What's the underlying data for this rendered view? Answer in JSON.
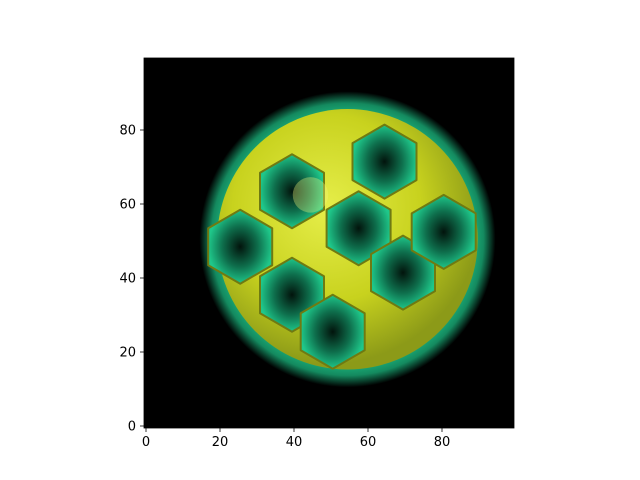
{
  "chart_data": {
    "type": "heatmap",
    "title": "",
    "xlabel": "",
    "ylabel": "",
    "xlim": [
      0,
      100
    ],
    "ylim": [
      0,
      100
    ],
    "x_ticks": [
      0,
      20,
      40,
      60,
      80
    ],
    "y_ticks": [
      0,
      20,
      40,
      60,
      80
    ],
    "x_tick_labels": [
      "0",
      "20",
      "40",
      "60",
      "80"
    ],
    "y_tick_labels": [
      "0",
      "20",
      "40",
      "60",
      "80"
    ],
    "grid": false,
    "content": "rendered 3D isosurface of a buckyball-like cage molecule",
    "center": [
      55,
      51
    ],
    "outer_radius": 40,
    "background_color": "#000000",
    "colors": {
      "face": "#c8d21e",
      "face_highlight": "#e6ee4a",
      "shadow": "#6f7a12",
      "edge": "#1fc78a",
      "edge_dark": "#0e6e4c"
    },
    "hexagonal_holes": [
      {
        "x": 40,
        "y": 36
      },
      {
        "x": 40,
        "y": 64
      },
      {
        "x": 58,
        "y": 54
      },
      {
        "x": 70,
        "y": 42
      },
      {
        "x": 65,
        "y": 72
      },
      {
        "x": 51,
        "y": 26
      },
      {
        "x": 26,
        "y": 49
      },
      {
        "x": 81,
        "y": 53
      }
    ]
  }
}
